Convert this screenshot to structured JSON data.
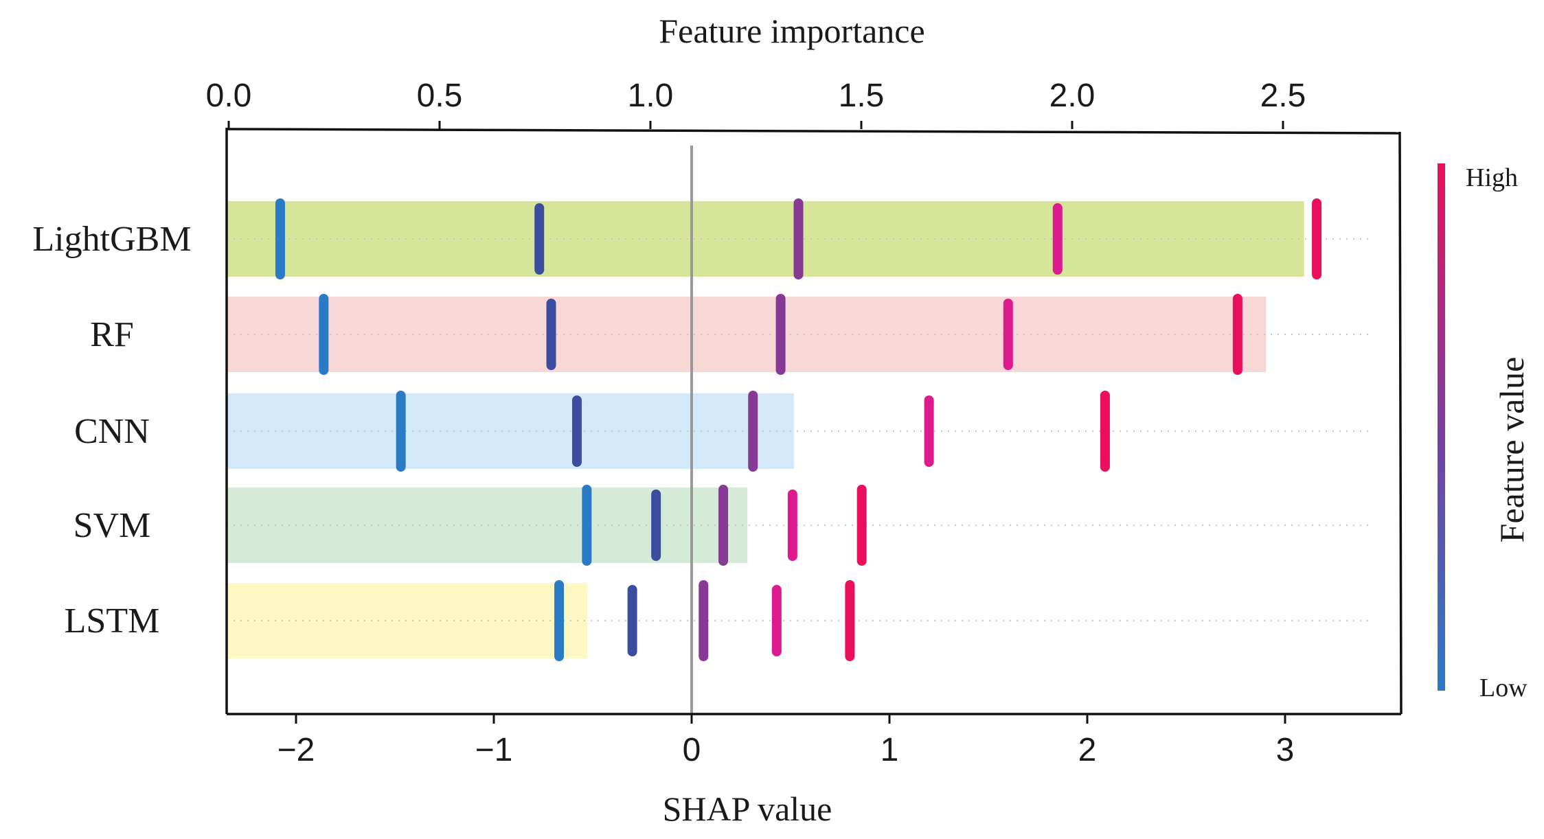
{
  "chart_data": {
    "type": "bar",
    "title": "",
    "top_axis": {
      "label": "Feature importance",
      "range": [
        0.0,
        2.78
      ],
      "ticks": [
        0.0,
        0.5,
        1.0,
        1.5,
        2.0,
        2.5
      ],
      "tick_labels": [
        "0.0",
        "0.5",
        "1.0",
        "1.5",
        "2.0",
        "2.5"
      ]
    },
    "bottom_axis": {
      "label": "SHAP value",
      "range": [
        -2.5,
        3.6
      ],
      "ticks": [
        -2,
        -1,
        0,
        1,
        2,
        3
      ],
      "tick_labels": [
        "−2",
        "−1",
        "0",
        "1",
        "2",
        "3"
      ]
    },
    "categories": [
      "LightGBM",
      "RF",
      "CNN",
      "SVM",
      "LSTM"
    ],
    "importance": [
      2.55,
      2.46,
      1.34,
      1.23,
      0.85
    ],
    "bar_colors": [
      "#d6e59a",
      "#f8d7d7",
      "#d3e9f8",
      "#d5ebd8",
      "#fdf8c3"
    ],
    "shap_points": [
      [
        -2.08,
        -0.77,
        0.54,
        1.85,
        3.16
      ],
      [
        -1.86,
        -0.71,
        0.45,
        1.6,
        2.76
      ],
      [
        -1.47,
        -0.58,
        0.31,
        1.2,
        2.09
      ],
      [
        -0.53,
        -0.18,
        0.16,
        0.51,
        0.86
      ],
      [
        -0.67,
        -0.3,
        0.06,
        0.43,
        0.8
      ]
    ],
    "point_colors": [
      "#2a7bc6",
      "#3c4da0",
      "#873a95",
      "#dd1a8e",
      "#ea0f5c"
    ],
    "zero_line": 0,
    "colorbar": {
      "label": "Feature value",
      "high": "High",
      "low": "Low",
      "colors": [
        "#2a7bc6",
        "#7a3da0",
        "#ea0f5c"
      ]
    },
    "grid": "dotted horizontal per category",
    "legend": "colorbar right"
  }
}
